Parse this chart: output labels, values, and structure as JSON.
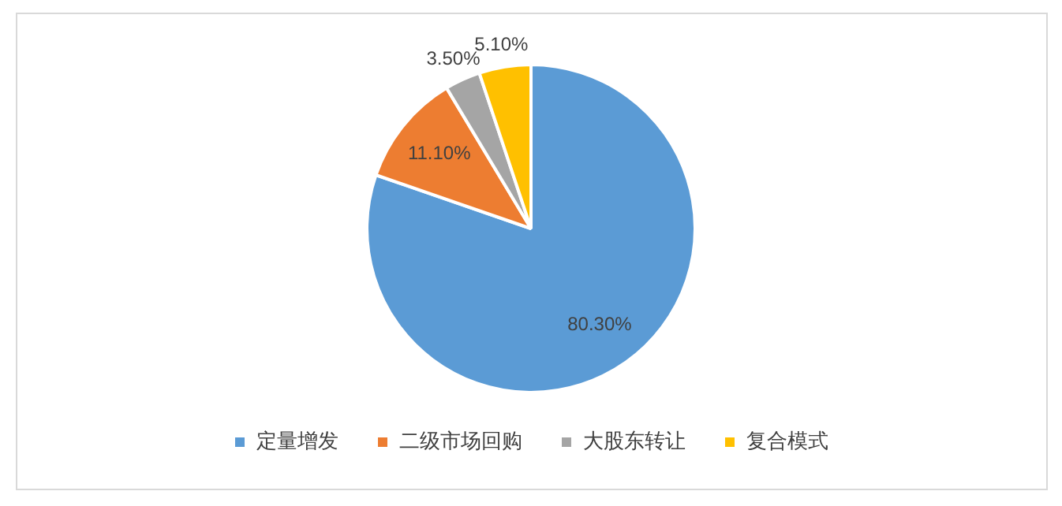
{
  "chart_data": {
    "type": "pie",
    "categories": [
      "定量增发",
      "二级市场回购",
      "大股东转让",
      "复合模式"
    ],
    "values": [
      80.3,
      11.1,
      3.5,
      5.1
    ],
    "colors": [
      "#5b9bd5",
      "#ed7d31",
      "#a5a5a5",
      "#ffc000"
    ],
    "value_labels": [
      "80.30%",
      "11.10%",
      "3.50%",
      "5.10%"
    ],
    "legend": "bottom"
  }
}
